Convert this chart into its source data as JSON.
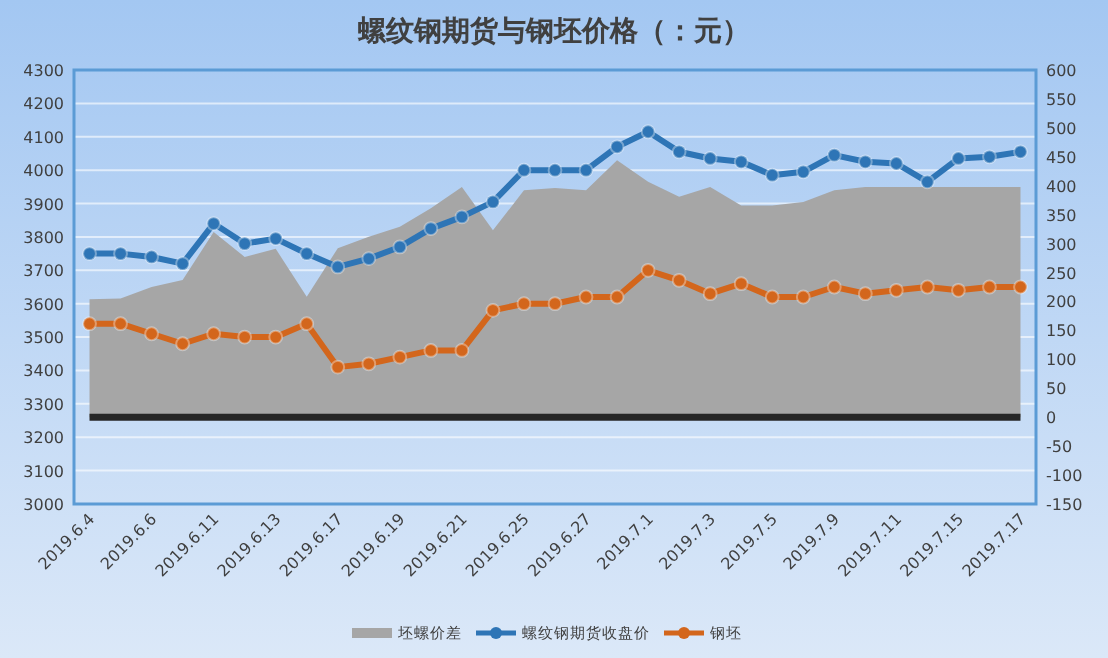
{
  "chart_data": {
    "type": "line",
    "title": "螺纹钢期货与钢坯价格（：元）",
    "categories": [
      "2019.6.4",
      null,
      "2019.6.6",
      null,
      "2019.6.11",
      null,
      "2019.6.13",
      null,
      "2019.6.17",
      null,
      "2019.6.19",
      null,
      "2019.6.21",
      null,
      "2019.6.25",
      null,
      "2019.6.27",
      null,
      "2019.7.1",
      null,
      "2019.7.3",
      null,
      "2019.7.5",
      null,
      "2019.7.9",
      null,
      "2019.7.11",
      null,
      "2019.7.15",
      null,
      "2019.7.17"
    ],
    "series": [
      {
        "name": "坯螺价差",
        "type": "area",
        "axis": "y2",
        "color": "#a6a6a6",
        "values": [
          204,
          205,
          225,
          237,
          320,
          277,
          291,
          208,
          292,
          312,
          329,
          361,
          398,
          323,
          392,
          396,
          392,
          444,
          407,
          381,
          398,
          366,
          366,
          372,
          392,
          398,
          398,
          398,
          398,
          398,
          398
        ]
      },
      {
        "name": "螺纹钢期货收盘价",
        "marker": "circle",
        "color": "#2e75b6",
        "values": [
          3750,
          3750,
          3740,
          3720,
          3840,
          3780,
          3795,
          3750,
          3710,
          3735,
          3770,
          3825,
          3860,
          3905,
          4000,
          4000,
          4000,
          4070,
          4115,
          4055,
          4035,
          4025,
          3985,
          3995,
          4045,
          4025,
          4020,
          3965,
          4035,
          4040,
          4055
        ]
      },
      {
        "name": "钢坯",
        "marker": "circle",
        "color": "#d3661c",
        "values": [
          3540,
          3540,
          3510,
          3480,
          3510,
          3500,
          3500,
          3540,
          3410,
          3420,
          3440,
          3460,
          3460,
          3580,
          3600,
          3600,
          3620,
          3620,
          3700,
          3670,
          3630,
          3660,
          3620,
          3620,
          3650,
          3630,
          3640,
          3650,
          3640,
          3650,
          3650
        ]
      }
    ],
    "ylim": [
      3000,
      4300
    ],
    "yticks": [
      3000,
      3100,
      3200,
      3300,
      3400,
      3500,
      3600,
      3700,
      3800,
      3900,
      4000,
      4100,
      4200,
      4300
    ],
    "y2lim": [
      -150,
      600
    ],
    "y2ticks": [
      -150,
      -100,
      -50,
      0,
      50,
      100,
      150,
      200,
      250,
      300,
      350,
      400,
      450,
      500,
      550,
      600
    ],
    "ref_lines": [
      {
        "axis": "y2",
        "value": 0,
        "color": "#262626"
      }
    ],
    "grid": "y",
    "legend": "bottom"
  }
}
